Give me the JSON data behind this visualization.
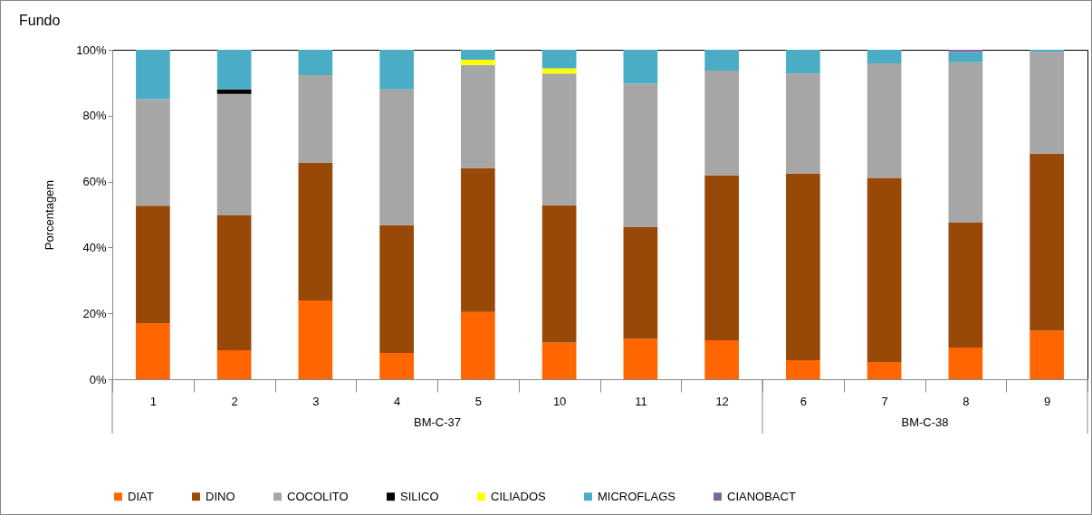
{
  "chart_data": {
    "type": "bar",
    "stacked": true,
    "title": "Fundo",
    "ylabel": "Porcentagem",
    "categories": [
      "1",
      "2",
      "3",
      "4",
      "5",
      "10",
      "11",
      "12",
      "6",
      "7",
      "8",
      "9"
    ],
    "series": [
      {
        "name": "DIAT",
        "color": "#ff6600",
        "values": [
          17,
          8.8,
          23.9,
          8,
          20.4,
          11.1,
          12.3,
          11.8,
          5.8,
          5.2,
          9.6,
          14.8
        ]
      },
      {
        "name": "DINO",
        "color": "#984807",
        "values": [
          35.7,
          40.9,
          41.9,
          38.8,
          43.7,
          41.7,
          34,
          50.1,
          56.6,
          55.9,
          37.9,
          53.7
        ]
      },
      {
        "name": "COCOLITO",
        "color": "#a6a6a6",
        "values": [
          32.3,
          36.9,
          26.5,
          41.2,
          31.3,
          40,
          43.4,
          31.8,
          30.4,
          34.8,
          48.7,
          30.9
        ]
      },
      {
        "name": "SILICO",
        "color": "#000000",
        "values": [
          0,
          1.4,
          0,
          0,
          0,
          0,
          0,
          0,
          0,
          0,
          0,
          0
        ]
      },
      {
        "name": "CILIADOS",
        "color": "#ffff00",
        "values": [
          0,
          0,
          0,
          0,
          1.6,
          1.6,
          0,
          0,
          0,
          0,
          0,
          0
        ]
      },
      {
        "name": "MICROFLAGS",
        "color": "#4bacc6",
        "values": [
          15,
          12,
          7.7,
          12,
          3,
          5.6,
          10.3,
          6.3,
          7.2,
          4.1,
          3.1,
          0.6
        ]
      },
      {
        "name": "CIANOBACT",
        "color": "#8064a2",
        "values": [
          0,
          0,
          0,
          0,
          0,
          0,
          0,
          0,
          0,
          0,
          0.7,
          0
        ]
      }
    ],
    "ylim": [
      0,
      100
    ],
    "yticks": [
      {
        "value": 0,
        "label": "0%"
      },
      {
        "value": 20,
        "label": "20%"
      },
      {
        "value": 40,
        "label": "40%"
      },
      {
        "value": 60,
        "label": "60%"
      },
      {
        "value": 80,
        "label": "80%"
      },
      {
        "value": 100,
        "label": "100%"
      }
    ],
    "annotations": [
      "BM-C-37",
      "BM-C-38"
    ],
    "legend": "bottom"
  }
}
